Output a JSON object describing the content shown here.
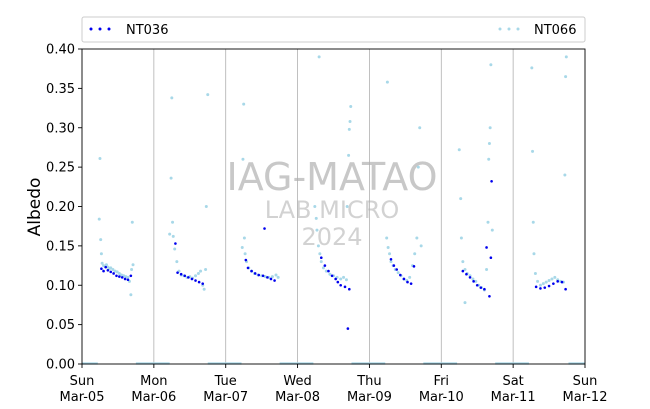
{
  "chart_data": {
    "type": "scatter",
    "ylabel": "Albedo",
    "xlabel": "",
    "ylim": [
      0.0,
      0.4
    ],
    "yticks": [
      "0.00",
      "0.05",
      "0.10",
      "0.15",
      "0.20",
      "0.25",
      "0.30",
      "0.35",
      "0.40"
    ],
    "xlim": [
      "2023-03-05",
      "2023-03-12"
    ],
    "xticks": [
      {
        "day": "Sun",
        "date": "Mar-05"
      },
      {
        "day": "Mon",
        "date": "Mar-06"
      },
      {
        "day": "Tue",
        "date": "Mar-07"
      },
      {
        "day": "Wed",
        "date": "Mar-08"
      },
      {
        "day": "Thu",
        "date": "Mar-09"
      },
      {
        "day": "Fri",
        "date": "Mar-10"
      },
      {
        "day": "Sat",
        "date": "Mar-11"
      },
      {
        "day": "Sun",
        "date": "Mar-12"
      }
    ],
    "grid": "vertical",
    "legend_position": "top",
    "watermark": [
      "IAG-MATAO",
      "LAB MICRO",
      "2024"
    ],
    "series": [
      {
        "name": "NT036",
        "color": "#0000ee",
        "points": [
          [
            0.27,
            0.121
          ],
          [
            0.3,
            0.118
          ],
          [
            0.33,
            0.123
          ],
          [
            0.36,
            0.119
          ],
          [
            0.4,
            0.117
          ],
          [
            0.44,
            0.115
          ],
          [
            0.48,
            0.112
          ],
          [
            0.52,
            0.111
          ],
          [
            0.56,
            0.11
          ],
          [
            0.6,
            0.108
          ],
          [
            0.64,
            0.107
          ],
          [
            0.68,
            0.112
          ],
          [
            1.3,
            0.153
          ],
          [
            1.33,
            0.116
          ],
          [
            1.38,
            0.114
          ],
          [
            1.43,
            0.112
          ],
          [
            1.48,
            0.11
          ],
          [
            1.53,
            0.108
          ],
          [
            1.58,
            0.106
          ],
          [
            1.63,
            0.104
          ],
          [
            1.68,
            0.102
          ],
          [
            2.28,
            0.132
          ],
          [
            2.31,
            0.122
          ],
          [
            2.36,
            0.118
          ],
          [
            2.41,
            0.115
          ],
          [
            2.46,
            0.113
          ],
          [
            2.52,
            0.112
          ],
          [
            2.54,
            0.172
          ],
          [
            2.58,
            0.11
          ],
          [
            2.63,
            0.108
          ],
          [
            2.68,
            0.106
          ],
          [
            3.33,
            0.135
          ],
          [
            3.38,
            0.125
          ],
          [
            3.43,
            0.118
          ],
          [
            3.48,
            0.112
          ],
          [
            3.53,
            0.108
          ],
          [
            3.56,
            0.104
          ],
          [
            3.6,
            0.1
          ],
          [
            3.66,
            0.098
          ],
          [
            3.7,
            0.045
          ],
          [
            3.72,
            0.095
          ],
          [
            4.3,
            0.133
          ],
          [
            4.34,
            0.125
          ],
          [
            4.38,
            0.12
          ],
          [
            4.43,
            0.113
          ],
          [
            4.48,
            0.108
          ],
          [
            4.53,
            0.104
          ],
          [
            4.58,
            0.102
          ],
          [
            4.62,
            0.124
          ],
          [
            5.3,
            0.118
          ],
          [
            5.35,
            0.114
          ],
          [
            5.4,
            0.11
          ],
          [
            5.45,
            0.105
          ],
          [
            5.5,
            0.1
          ],
          [
            5.55,
            0.097
          ],
          [
            5.6,
            0.095
          ],
          [
            5.63,
            0.148
          ],
          [
            5.67,
            0.086
          ],
          [
            5.7,
            0.232
          ],
          [
            5.69,
            0.135
          ],
          [
            6.32,
            0.098
          ],
          [
            6.38,
            0.096
          ],
          [
            6.44,
            0.097
          ],
          [
            6.5,
            0.099
          ],
          [
            6.56,
            0.102
          ],
          [
            6.62,
            0.105
          ],
          [
            6.68,
            0.104
          ],
          [
            6.73,
            0.095
          ]
        ]
      },
      {
        "name": "NT066",
        "color": "#a8d8e8",
        "points": [
          [
            0.24,
            0.184
          ],
          [
            0.25,
            0.261
          ],
          [
            0.26,
            0.158
          ],
          [
            0.27,
            0.14
          ],
          [
            0.28,
            0.128
          ],
          [
            0.3,
            0.125
          ],
          [
            0.32,
            0.124
          ],
          [
            0.34,
            0.126
          ],
          [
            0.36,
            0.123
          ],
          [
            0.38,
            0.121
          ],
          [
            0.4,
            0.122
          ],
          [
            0.43,
            0.12
          ],
          [
            0.46,
            0.118
          ],
          [
            0.49,
            0.117
          ],
          [
            0.52,
            0.115
          ],
          [
            0.55,
            0.113
          ],
          [
            0.58,
            0.112
          ],
          [
            0.61,
            0.111
          ],
          [
            0.64,
            0.11
          ],
          [
            0.66,
            0.105
          ],
          [
            0.68,
            0.088
          ],
          [
            0.69,
            0.12
          ],
          [
            0.7,
            0.18
          ],
          [
            0.71,
            0.126
          ],
          [
            1.22,
            0.165
          ],
          [
            1.25,
            0.338
          ],
          [
            1.24,
            0.236
          ],
          [
            1.26,
            0.18
          ],
          [
            1.27,
            0.162
          ],
          [
            1.29,
            0.146
          ],
          [
            1.32,
            0.13
          ],
          [
            1.35,
            0.118
          ],
          [
            1.38,
            0.113
          ],
          [
            1.42,
            0.112
          ],
          [
            1.46,
            0.11
          ],
          [
            1.5,
            0.111
          ],
          [
            1.54,
            0.109
          ],
          [
            1.58,
            0.112
          ],
          [
            1.62,
            0.115
          ],
          [
            1.65,
            0.118
          ],
          [
            1.68,
            0.1
          ],
          [
            1.7,
            0.095
          ],
          [
            1.72,
            0.12
          ],
          [
            1.73,
            0.2
          ],
          [
            1.75,
            0.342
          ],
          [
            2.23,
            0.148
          ],
          [
            2.25,
            0.33
          ],
          [
            2.24,
            0.26
          ],
          [
            2.26,
            0.16
          ],
          [
            2.27,
            0.14
          ],
          [
            2.29,
            0.13
          ],
          [
            2.32,
            0.122
          ],
          [
            2.36,
            0.118
          ],
          [
            2.4,
            0.115
          ],
          [
            2.45,
            0.113
          ],
          [
            2.5,
            0.112
          ],
          [
            2.55,
            0.111
          ],
          [
            2.6,
            0.11
          ],
          [
            2.65,
            0.111
          ],
          [
            2.7,
            0.113
          ],
          [
            2.73,
            0.11
          ],
          [
            3.24,
            0.2
          ],
          [
            3.26,
            0.185
          ],
          [
            3.27,
            0.17
          ],
          [
            3.29,
            0.15
          ],
          [
            3.3,
            0.39
          ],
          [
            3.31,
            0.14
          ],
          [
            3.33,
            0.13
          ],
          [
            3.36,
            0.122
          ],
          [
            3.4,
            0.118
          ],
          [
            3.45,
            0.114
          ],
          [
            3.5,
            0.112
          ],
          [
            3.55,
            0.11
          ],
          [
            3.6,
            0.108
          ],
          [
            3.64,
            0.11
          ],
          [
            3.68,
            0.107
          ],
          [
            3.71,
            0.265
          ],
          [
            3.72,
            0.298
          ],
          [
            3.73,
            0.308
          ],
          [
            3.74,
            0.327
          ],
          [
            3.69,
            0.2
          ],
          [
            4.24,
            0.16
          ],
          [
            4.25,
            0.358
          ],
          [
            4.26,
            0.148
          ],
          [
            4.28,
            0.14
          ],
          [
            4.3,
            0.13
          ],
          [
            4.33,
            0.125
          ],
          [
            4.36,
            0.12
          ],
          [
            4.4,
            0.116
          ],
          [
            4.44,
            0.112
          ],
          [
            4.48,
            0.108
          ],
          [
            4.52,
            0.106
          ],
          [
            4.56,
            0.11
          ],
          [
            4.6,
            0.125
          ],
          [
            4.63,
            0.14
          ],
          [
            4.66,
            0.16
          ],
          [
            4.68,
            0.25
          ],
          [
            4.7,
            0.3
          ],
          [
            4.72,
            0.15
          ],
          [
            5.25,
            0.272
          ],
          [
            5.27,
            0.21
          ],
          [
            5.28,
            0.16
          ],
          [
            5.3,
            0.13
          ],
          [
            5.33,
            0.12
          ],
          [
            5.36,
            0.115
          ],
          [
            5.4,
            0.112
          ],
          [
            5.44,
            0.108
          ],
          [
            5.48,
            0.105
          ],
          [
            5.52,
            0.1
          ],
          [
            5.56,
            0.097
          ],
          [
            5.6,
            0.094
          ],
          [
            5.63,
            0.12
          ],
          [
            5.65,
            0.18
          ],
          [
            5.66,
            0.26
          ],
          [
            5.67,
            0.28
          ],
          [
            5.68,
            0.3
          ],
          [
            5.69,
            0.38
          ],
          [
            5.71,
            0.17
          ],
          [
            5.33,
            0.078
          ],
          [
            6.26,
            0.376
          ],
          [
            6.27,
            0.27
          ],
          [
            6.28,
            0.18
          ],
          [
            6.29,
            0.14
          ],
          [
            6.31,
            0.115
          ],
          [
            6.34,
            0.105
          ],
          [
            6.38,
            0.1
          ],
          [
            6.42,
            0.102
          ],
          [
            6.46,
            0.104
          ],
          [
            6.5,
            0.106
          ],
          [
            6.54,
            0.108
          ],
          [
            6.58,
            0.11
          ],
          [
            6.62,
            0.107
          ],
          [
            6.66,
            0.105
          ],
          [
            6.7,
            0.104
          ],
          [
            6.72,
            0.24
          ],
          [
            6.73,
            0.365
          ],
          [
            6.74,
            0.39
          ]
        ]
      }
    ],
    "zero_baseline_days": [
      0,
      1,
      2,
      3,
      4,
      5,
      6
    ]
  }
}
